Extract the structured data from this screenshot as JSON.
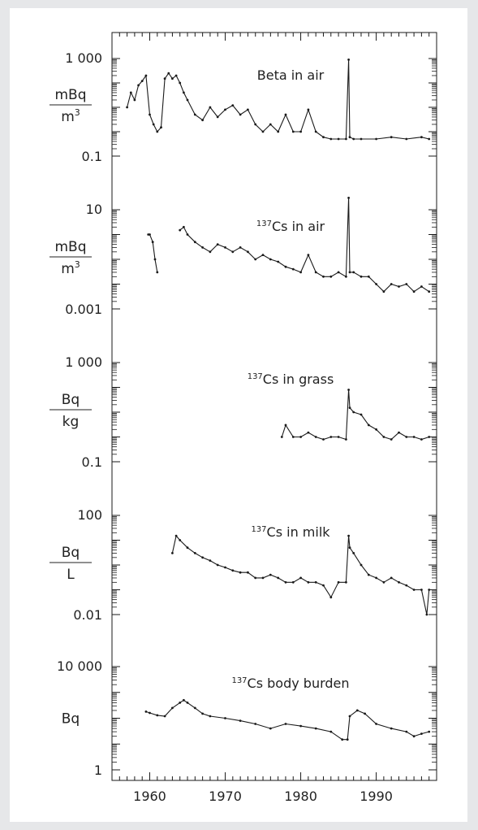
{
  "chart_data": {
    "type": "line",
    "x_axis": {
      "range": [
        1955,
        1998
      ],
      "ticks": [
        1960,
        1970,
        1980,
        1990
      ],
      "tick_labels": [
        "1960",
        "1970",
        "1980",
        "1990"
      ]
    },
    "panels": [
      {
        "id": "beta",
        "title_sup": "",
        "title": "Beta in air",
        "unit_num": "mBq",
        "unit_den": "m",
        "unit_den_sup": "3",
        "yscale": "log",
        "ylim": [
          0.1,
          1000
        ],
        "y_tick_labels": [
          "1 000",
          "0.1"
        ],
        "series": [
          {
            "x": [
              1957.0,
              1957.5,
              1958.0,
              1958.5,
              1959.0,
              1959.5,
              1960.0,
              1960.5,
              1961.0,
              1961.5,
              1962.0,
              1962.5,
              1963.0,
              1963.5,
              1964.0,
              1964.5,
              1965.0,
              1966.0,
              1967.0,
              1968.0,
              1969.0,
              1970.0,
              1971.0,
              1972.0,
              1973.0,
              1974.0,
              1975.0,
              1976.0,
              1977.0,
              1978.0,
              1979.0,
              1980.0,
              1981.0,
              1982.0,
              1983.0,
              1984.0,
              1985.0,
              1986.0,
              1986.35,
              1986.5,
              1987.0,
              1988.0,
              1990.0,
              1992.0,
              1994.0,
              1996.0,
              1997.0
            ],
            "y": [
              10,
              40,
              20,
              80,
              120,
              200,
              5,
              2,
              1,
              1.5,
              150,
              250,
              150,
              200,
              100,
              40,
              20,
              5,
              3,
              10,
              4,
              8,
              12,
              5,
              8,
              2,
              1,
              2,
              1,
              5,
              1,
              1,
              8,
              1,
              0.6,
              0.5,
              0.5,
              0.5,
              900,
              0.6,
              0.5,
              0.5,
              0.5,
              0.6,
              0.5,
              0.6,
              0.5
            ]
          }
        ]
      },
      {
        "id": "cs_air",
        "title_sup": "137",
        "title": "Cs in air",
        "unit_num": "mBq",
        "unit_den": "m",
        "unit_den_sup": "3",
        "yscale": "log",
        "ylim": [
          0.001,
          10
        ],
        "y_tick_labels": [
          "10",
          "0.001"
        ],
        "series": [
          {
            "x": [
              1959.8,
              1960.0,
              1960.4,
              1960.7,
              1961.0
            ],
            "y": [
              1,
              1,
              0.5,
              0.1,
              0.03
            ]
          },
          {
            "x": [
              1964.0,
              1964.5,
              1965.0,
              1966.0,
              1967.0,
              1968.0,
              1969.0,
              1970.0,
              1971.0,
              1972.0,
              1973.0,
              1974.0,
              1975.0,
              1976.0,
              1977.0,
              1978.0,
              1979.0,
              1980.0,
              1981.0,
              1982.0,
              1983.0,
              1984.0,
              1985.0,
              1986.0,
              1986.35,
              1986.5,
              1987.0,
              1988.0,
              1989.0,
              1990.0,
              1991.0,
              1992.0,
              1993.0,
              1994.0,
              1995.0,
              1996.0,
              1997.0
            ],
            "y": [
              1.5,
              2,
              1,
              0.5,
              0.3,
              0.2,
              0.4,
              0.3,
              0.2,
              0.3,
              0.2,
              0.1,
              0.15,
              0.1,
              0.08,
              0.05,
              0.04,
              0.03,
              0.15,
              0.03,
              0.02,
              0.02,
              0.03,
              0.02,
              30,
              0.03,
              0.03,
              0.02,
              0.02,
              0.01,
              0.005,
              0.01,
              0.008,
              0.01,
              0.005,
              0.008,
              0.005
            ]
          }
        ]
      },
      {
        "id": "cs_grass",
        "title_sup": "137",
        "title": "Cs in grass",
        "unit_num": "Bq",
        "unit_den": "kg",
        "unit_den_sup": "",
        "yscale": "log",
        "ylim": [
          0.1,
          1000
        ],
        "y_tick_labels": [
          "1 000",
          "0.1"
        ],
        "series": [
          {
            "x": [
              1977.5,
              1978.0,
              1979.0,
              1980.0,
              1981.0,
              1982.0,
              1983.0,
              1984.0,
              1985.0,
              1986.0,
              1986.35,
              1986.5,
              1987.0,
              1988.0,
              1989.0,
              1990.0,
              1991.0,
              1992.0,
              1993.0,
              1994.0,
              1995.0,
              1996.0,
              1997.0
            ],
            "y": [
              1,
              3,
              1,
              1,
              1.5,
              1,
              0.8,
              1,
              1,
              0.8,
              80,
              15,
              10,
              8,
              3,
              2,
              1,
              0.8,
              1.5,
              1,
              1,
              0.8,
              1
            ]
          }
        ]
      },
      {
        "id": "cs_milk",
        "title_sup": "137",
        "title": "Cs in milk",
        "unit_num": "Bq",
        "unit_den": "L",
        "unit_den_sup": "",
        "yscale": "log",
        "ylim": [
          0.01,
          100
        ],
        "y_tick_labels": [
          "100",
          "0.01"
        ],
        "series": [
          {
            "x": [
              1963.0,
              1963.5,
              1964.0,
              1965.0,
              1966.0,
              1967.0,
              1968.0,
              1969.0,
              1970.0,
              1971.0,
              1972.0,
              1973.0,
              1974.0,
              1975.0,
              1976.0,
              1977.0,
              1978.0,
              1979.0,
              1980.0,
              1981.0,
              1982.0,
              1983.0,
              1984.0,
              1985.0,
              1986.0,
              1986.35,
              1986.5,
              1987.0,
              1988.0,
              1989.0,
              1990.0,
              1991.0,
              1992.0,
              1993.0,
              1994.0,
              1995.0,
              1996.0,
              1996.7,
              1997.0
            ],
            "y": [
              3,
              15,
              10,
              5,
              3,
              2,
              1.5,
              1,
              0.8,
              0.6,
              0.5,
              0.5,
              0.3,
              0.3,
              0.4,
              0.3,
              0.2,
              0.2,
              0.3,
              0.2,
              0.2,
              0.15,
              0.05,
              0.2,
              0.2,
              15,
              5,
              3,
              1,
              0.4,
              0.3,
              0.2,
              0.3,
              0.2,
              0.15,
              0.1,
              0.1,
              0.01,
              0.1
            ]
          }
        ]
      },
      {
        "id": "cs_body",
        "title_sup": "137",
        "title": "Cs body burden",
        "unit_num": "Bq",
        "unit_den": "",
        "unit_den_sup": "",
        "yscale": "log",
        "ylim": [
          1,
          10000
        ],
        "y_tick_labels": [
          "10 000",
          "1"
        ],
        "series": [
          {
            "x": [
              1959.5,
              1960.0,
              1961.0,
              1962.0,
              1963.0,
              1964.0,
              1964.5,
              1965.0,
              1966.0,
              1967.0,
              1968.0,
              1970.0,
              1972.0,
              1974.0,
              1976.0,
              1978.0,
              1980.0,
              1982.0,
              1984.0,
              1985.5,
              1986.2,
              1986.5,
              1987.5,
              1988.5,
              1990.0,
              1992.0,
              1994.0,
              1995.0,
              1996.0,
              1997.0
            ],
            "y": [
              180,
              160,
              130,
              120,
              250,
              400,
              500,
              400,
              250,
              150,
              120,
              100,
              80,
              60,
              40,
              60,
              50,
              40,
              30,
              15,
              15,
              120,
              200,
              150,
              60,
              40,
              30,
              20,
              25,
              30
            ]
          }
        ]
      }
    ]
  }
}
